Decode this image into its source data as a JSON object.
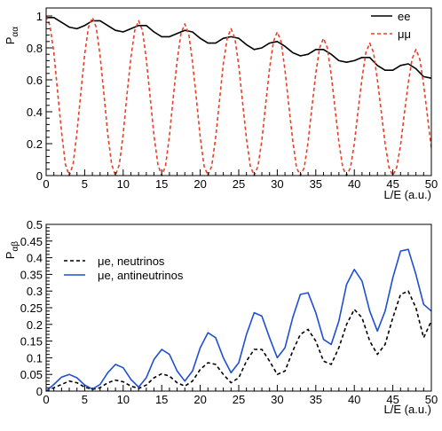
{
  "chart_data": [
    {
      "type": "line",
      "xlabel": "L/E (a.u.)",
      "ylabel": "P",
      "ylabel_sub": "αα",
      "xlim": [
        0,
        50
      ],
      "ylim": [
        0,
        1.05
      ],
      "xticks": [
        "0",
        "5",
        "10",
        "15",
        "20",
        "25",
        "30",
        "35",
        "40",
        "45",
        "50"
      ],
      "yticks": [
        "0",
        "0.2",
        "0.4",
        "0.6",
        "0.8",
        "1"
      ],
      "legend_position": "top-right",
      "series": [
        {
          "name": "ee",
          "color": "#000000",
          "style": "solid",
          "x": [
            0,
            1,
            2,
            3,
            4,
            5,
            6,
            7,
            8,
            9,
            10,
            11,
            12,
            13,
            14,
            15,
            16,
            17,
            18,
            19,
            20,
            21,
            22,
            23,
            24,
            25,
            26,
            27,
            28,
            29,
            30,
            31,
            32,
            33,
            34,
            35,
            36,
            37,
            38,
            39,
            40,
            41,
            42,
            43,
            44,
            45,
            46,
            47,
            48,
            49,
            50
          ],
          "y": [
            0.99,
            0.99,
            0.96,
            0.93,
            0.92,
            0.94,
            0.97,
            0.97,
            0.94,
            0.91,
            0.9,
            0.92,
            0.94,
            0.94,
            0.9,
            0.87,
            0.87,
            0.89,
            0.91,
            0.9,
            0.86,
            0.83,
            0.83,
            0.86,
            0.87,
            0.86,
            0.82,
            0.79,
            0.8,
            0.83,
            0.84,
            0.81,
            0.77,
            0.75,
            0.76,
            0.79,
            0.79,
            0.76,
            0.72,
            0.71,
            0.72,
            0.74,
            0.74,
            0.69,
            0.66,
            0.66,
            0.69,
            0.7,
            0.67,
            0.62,
            0.61
          ]
        },
        {
          "name": "μμ",
          "color": "#e8402a",
          "style": "dashed",
          "x": [
            0,
            0.5,
            1,
            1.5,
            2,
            2.5,
            3,
            3.5,
            4,
            4.5,
            5,
            5.5,
            6,
            6.5,
            7,
            7.5,
            8,
            8.5,
            9,
            9.5,
            10,
            10.5,
            11,
            11.5,
            12,
            12.5,
            13,
            13.5,
            14,
            14.5,
            15,
            15.5,
            16,
            16.5,
            17,
            17.5,
            18,
            18.5,
            19,
            19.5,
            20,
            20.5,
            21,
            21.5,
            22,
            22.5,
            23,
            23.5,
            24,
            24.5,
            25,
            25.5,
            26,
            26.5,
            27,
            27.5,
            28,
            28.5,
            29,
            29.5,
            30,
            30.5,
            31,
            31.5,
            32,
            32.5,
            33,
            33.5,
            34,
            34.5,
            35,
            35.5,
            36,
            36.5,
            37,
            37.5,
            38,
            38.5,
            39,
            39.5,
            40,
            40.5,
            41,
            41.5,
            42,
            42.5,
            43,
            43.5,
            44,
            44.5,
            45,
            45.5,
            46,
            46.5,
            47,
            47.5,
            48,
            48.5,
            49,
            49.5,
            50
          ],
          "y": [
            1.0,
            0.94,
            0.77,
            0.52,
            0.27,
            0.07,
            0.0,
            0.07,
            0.27,
            0.52,
            0.76,
            0.93,
            0.99,
            0.93,
            0.75,
            0.51,
            0.26,
            0.07,
            0.0,
            0.07,
            0.26,
            0.51,
            0.74,
            0.91,
            0.97,
            0.91,
            0.73,
            0.49,
            0.25,
            0.07,
            0.0,
            0.06,
            0.25,
            0.49,
            0.72,
            0.89,
            0.95,
            0.89,
            0.71,
            0.48,
            0.24,
            0.06,
            0.0,
            0.06,
            0.24,
            0.47,
            0.7,
            0.86,
            0.92,
            0.86,
            0.69,
            0.46,
            0.23,
            0.06,
            0.0,
            0.06,
            0.22,
            0.45,
            0.67,
            0.84,
            0.9,
            0.84,
            0.66,
            0.44,
            0.22,
            0.05,
            0.0,
            0.05,
            0.21,
            0.43,
            0.64,
            0.8,
            0.86,
            0.8,
            0.63,
            0.42,
            0.21,
            0.05,
            0.0,
            0.05,
            0.2,
            0.41,
            0.61,
            0.77,
            0.83,
            0.77,
            0.6,
            0.4,
            0.2,
            0.05,
            0.0,
            0.05,
            0.19,
            0.39,
            0.58,
            0.73,
            0.79,
            0.73,
            0.57,
            0.37,
            0.17
          ]
        }
      ]
    },
    {
      "type": "line",
      "xlabel": "L/E (a.u.)",
      "ylabel": "P",
      "ylabel_sub": "αβ",
      "xlim": [
        0,
        50
      ],
      "ylim": [
        0,
        0.5
      ],
      "xticks": [
        "0",
        "5",
        "10",
        "15",
        "20",
        "25",
        "30",
        "35",
        "40",
        "45",
        "50"
      ],
      "yticks": [
        "0",
        "0.05",
        "0.1",
        "0.15",
        "0.2",
        "0.25",
        "0.3",
        "0.35",
        "0.4",
        "0.45",
        "0.5"
      ],
      "legend_position": "top-left",
      "series": [
        {
          "name": "μe, neutrinos",
          "color": "#000000",
          "style": "dashed",
          "x": [
            0,
            1,
            2,
            3,
            4,
            5,
            6,
            7,
            8,
            9,
            10,
            11,
            12,
            13,
            14,
            15,
            16,
            17,
            18,
            19,
            20,
            21,
            22,
            23,
            24,
            25,
            26,
            27,
            28,
            29,
            30,
            31,
            32,
            33,
            34,
            35,
            36,
            37,
            38,
            39,
            40,
            41,
            42,
            43,
            44,
            45,
            46,
            47,
            48,
            49,
            50
          ],
          "y": [
            0.0,
            0.01,
            0.02,
            0.03,
            0.025,
            0.012,
            0.005,
            0.01,
            0.025,
            0.033,
            0.028,
            0.015,
            0.008,
            0.018,
            0.04,
            0.052,
            0.045,
            0.025,
            0.015,
            0.03,
            0.065,
            0.085,
            0.08,
            0.05,
            0.025,
            0.04,
            0.09,
            0.125,
            0.125,
            0.09,
            0.05,
            0.06,
            0.12,
            0.17,
            0.185,
            0.15,
            0.09,
            0.08,
            0.13,
            0.2,
            0.245,
            0.22,
            0.15,
            0.11,
            0.14,
            0.22,
            0.29,
            0.3,
            0.25,
            0.16,
            0.21
          ]
        },
        {
          "name": "μe, antineutrinos",
          "color": "#1f4fd1",
          "style": "solid",
          "x": [
            0,
            1,
            2,
            3,
            4,
            5,
            6,
            7,
            8,
            9,
            10,
            11,
            12,
            13,
            14,
            15,
            16,
            17,
            18,
            19,
            20,
            21,
            22,
            23,
            24,
            25,
            26,
            27,
            28,
            29,
            30,
            31,
            32,
            33,
            34,
            35,
            36,
            37,
            38,
            39,
            40,
            41,
            42,
            43,
            44,
            45,
            46,
            47,
            48,
            49,
            50
          ],
          "y": [
            0.0,
            0.02,
            0.042,
            0.05,
            0.04,
            0.018,
            0.006,
            0.02,
            0.055,
            0.08,
            0.07,
            0.035,
            0.012,
            0.04,
            0.095,
            0.125,
            0.11,
            0.06,
            0.03,
            0.06,
            0.13,
            0.175,
            0.16,
            0.1,
            0.055,
            0.085,
            0.17,
            0.235,
            0.225,
            0.16,
            0.1,
            0.13,
            0.22,
            0.29,
            0.295,
            0.235,
            0.155,
            0.14,
            0.21,
            0.32,
            0.365,
            0.33,
            0.24,
            0.18,
            0.24,
            0.34,
            0.42,
            0.425,
            0.35,
            0.26,
            0.24
          ]
        }
      ]
    }
  ]
}
